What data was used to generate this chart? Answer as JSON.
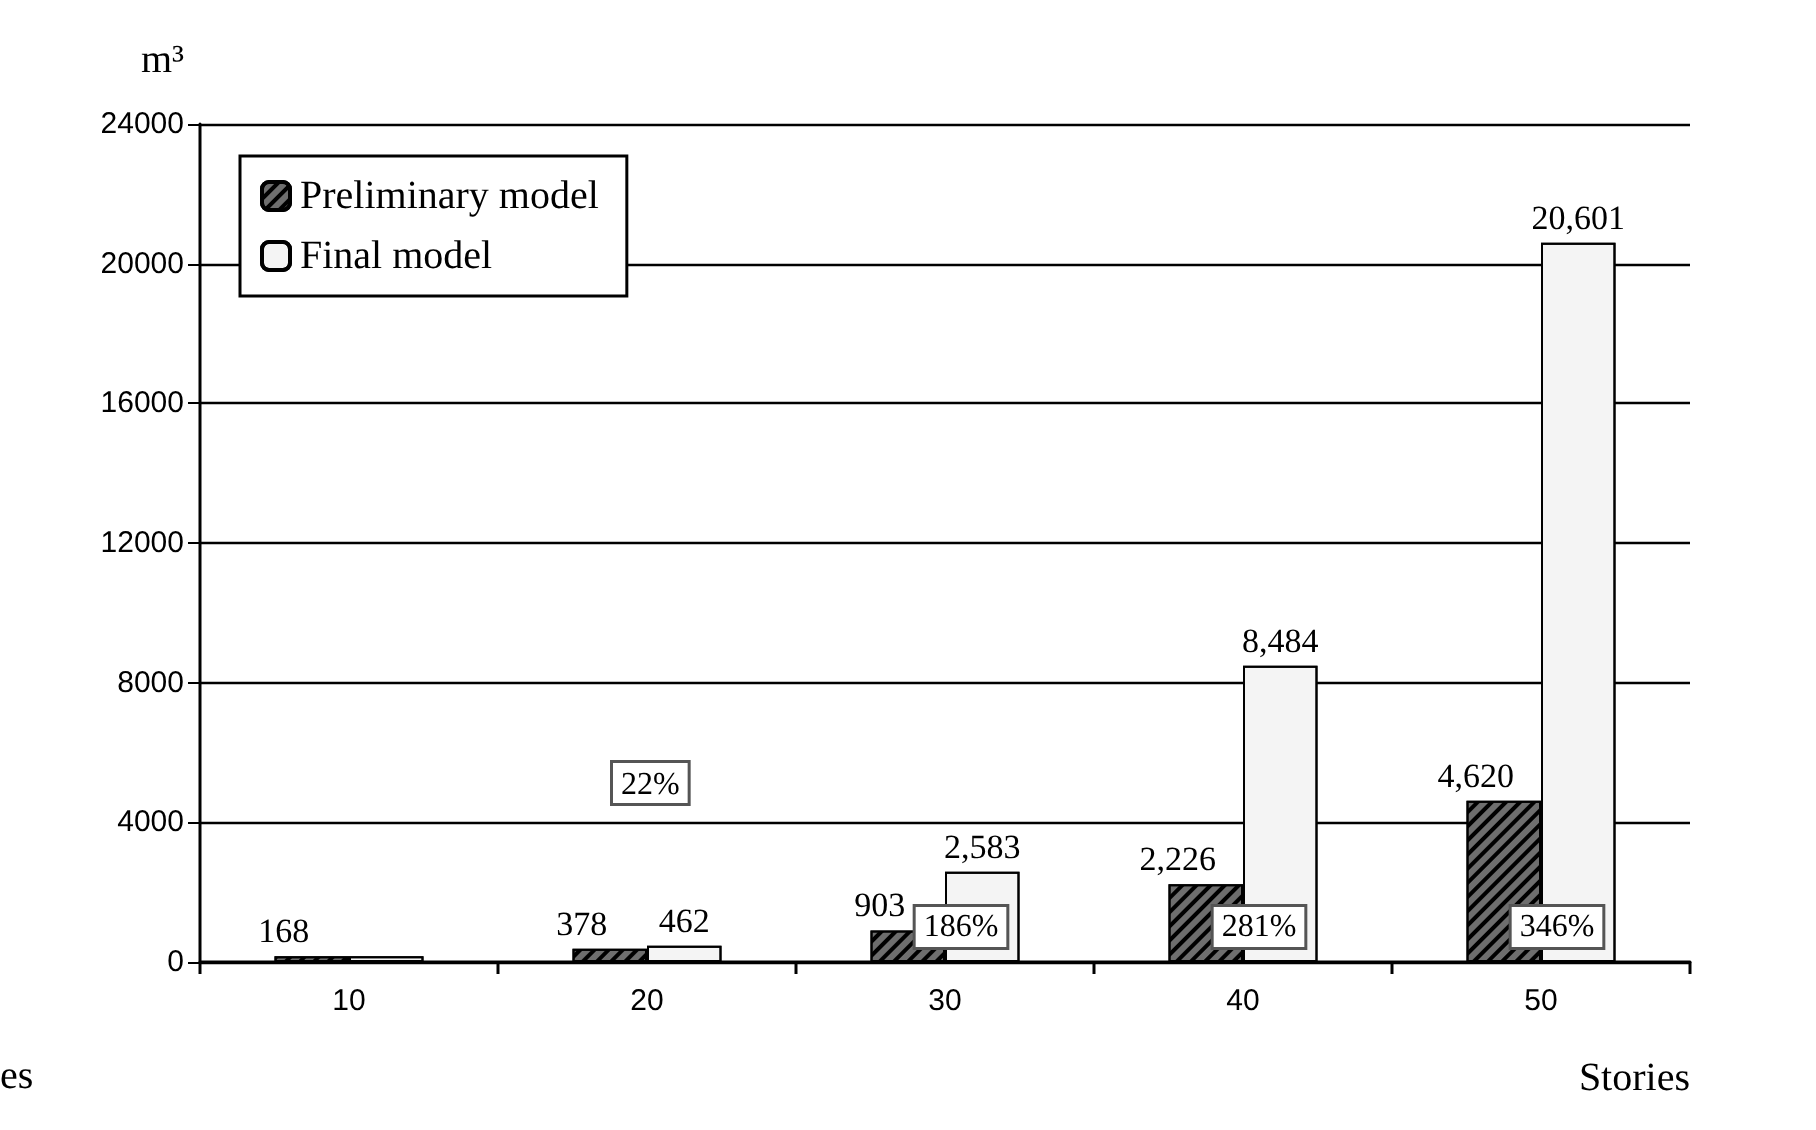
{
  "chart_data": {
    "type": "bar",
    "ylabel": "m³",
    "xlabel": "Stories",
    "categories": [
      "10",
      "20",
      "30",
      "40",
      "50"
    ],
    "series": [
      {
        "name": "Preliminary model",
        "color": "#6e6e6e",
        "values": [
          168,
          378,
          903,
          2226,
          4620
        ],
        "value_labels": [
          "168",
          "378",
          "903",
          "2,226",
          "4,620"
        ]
      },
      {
        "name": "Final model",
        "color": "#f4f4f4",
        "values": [
          168,
          462,
          2583,
          8484,
          20601
        ],
        "value_labels": [
          null,
          "462",
          "2,583",
          "8,484",
          "20,601"
        ]
      }
    ],
    "ylim": [
      0,
      24000
    ],
    "yticks": [
      0,
      4000,
      8000,
      12000,
      16000,
      20000,
      24000
    ],
    "grid": "y",
    "legend": "top left",
    "annotations": [
      "22%",
      {
        "text": "186%",
        "x": "30",
        "y": 1000
      },
      {
        "text": "281%",
        "x": "40",
        "y": 1000
      },
      {
        "text": "346%",
        "x": "50",
        "y": 1000
      },
      "es"
    ]
  }
}
